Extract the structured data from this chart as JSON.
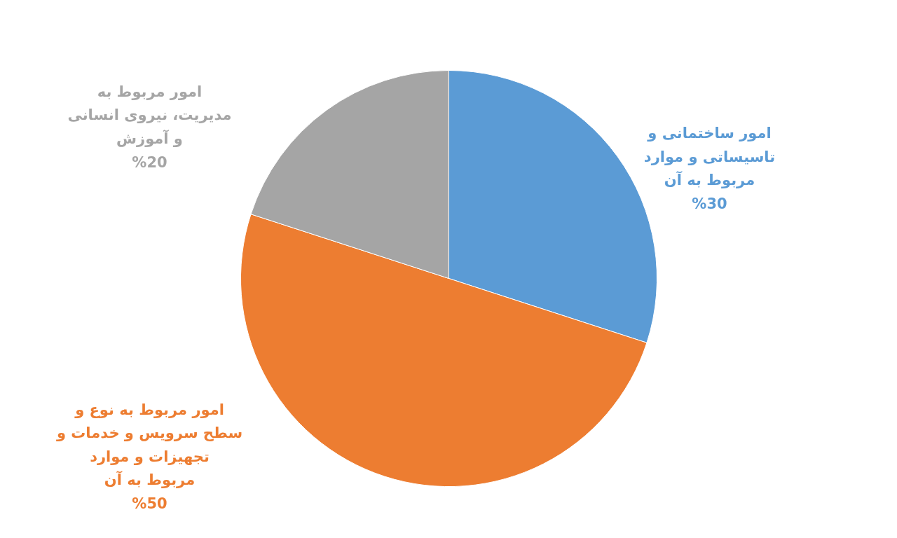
{
  "chart_data": {
    "type": "pie",
    "categories": [
      "امور ساختمانی و تاسیساتی و موارد مربوط به آن",
      "امور مربوط به نوع و سطح سرویس و خدمات و تجهیزات و موارد مربوط به آن",
      "امور مربوط به مدیریت، نیروی انسانی و آموزش"
    ],
    "values": [
      30,
      50,
      20
    ],
    "colors": [
      "#5b9bd5",
      "#ed7d31",
      "#a5a5a5"
    ],
    "value_labels": [
      "%30",
      "%50",
      "%20"
    ]
  }
}
